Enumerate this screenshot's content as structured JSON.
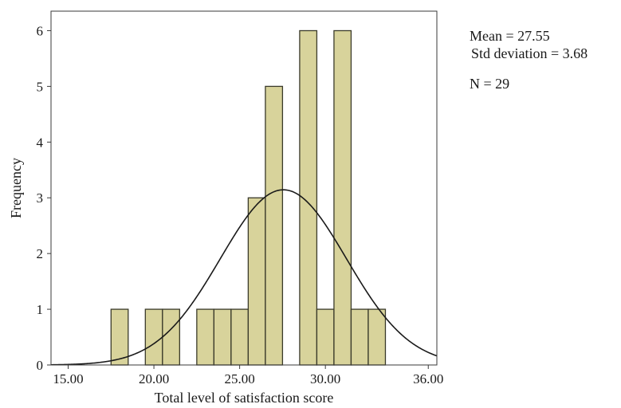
{
  "chart_data": {
    "type": "histogram",
    "xlabel": "Total level of satisfaction score",
    "ylabel": "Frequency",
    "xlim": [
      14.0,
      36.5
    ],
    "ylim": [
      0,
      6.35
    ],
    "x_ticks": [
      15.0,
      20.0,
      25.0,
      30.0,
      36.0
    ],
    "x_tick_labels": [
      "15.00",
      "20.00",
      "25.00",
      "30.00",
      "36.00"
    ],
    "y_ticks": [
      0,
      1,
      2,
      3,
      4,
      5,
      6
    ],
    "y_tick_labels": [
      "0",
      "1",
      "2",
      "3",
      "4",
      "5",
      "6"
    ],
    "bin_width": 1,
    "bins": [
      {
        "start": 17.5,
        "end": 18.5,
        "count": 1
      },
      {
        "start": 19.5,
        "end": 20.5,
        "count": 1
      },
      {
        "start": 20.5,
        "end": 21.5,
        "count": 1
      },
      {
        "start": 22.5,
        "end": 23.5,
        "count": 1
      },
      {
        "start": 23.5,
        "end": 24.5,
        "count": 1
      },
      {
        "start": 24.5,
        "end": 25.5,
        "count": 1
      },
      {
        "start": 25.5,
        "end": 26.5,
        "count": 3
      },
      {
        "start": 26.5,
        "end": 27.5,
        "count": 5
      },
      {
        "start": 28.5,
        "end": 29.5,
        "count": 6
      },
      {
        "start": 29.5,
        "end": 30.5,
        "count": 1
      },
      {
        "start": 30.5,
        "end": 31.5,
        "count": 6
      },
      {
        "start": 31.5,
        "end": 32.5,
        "count": 1
      },
      {
        "start": 32.5,
        "end": 33.5,
        "count": 1
      }
    ],
    "normal_curve": {
      "mean": 27.55,
      "sd": 3.68,
      "n": 29
    },
    "bar_color": "#d8d39b",
    "bar_edge_color": "#3a3a2a"
  },
  "stats": {
    "mean": "Mean = 27.55",
    "std": "Std deviation = 3.68",
    "n": "N = 29"
  }
}
